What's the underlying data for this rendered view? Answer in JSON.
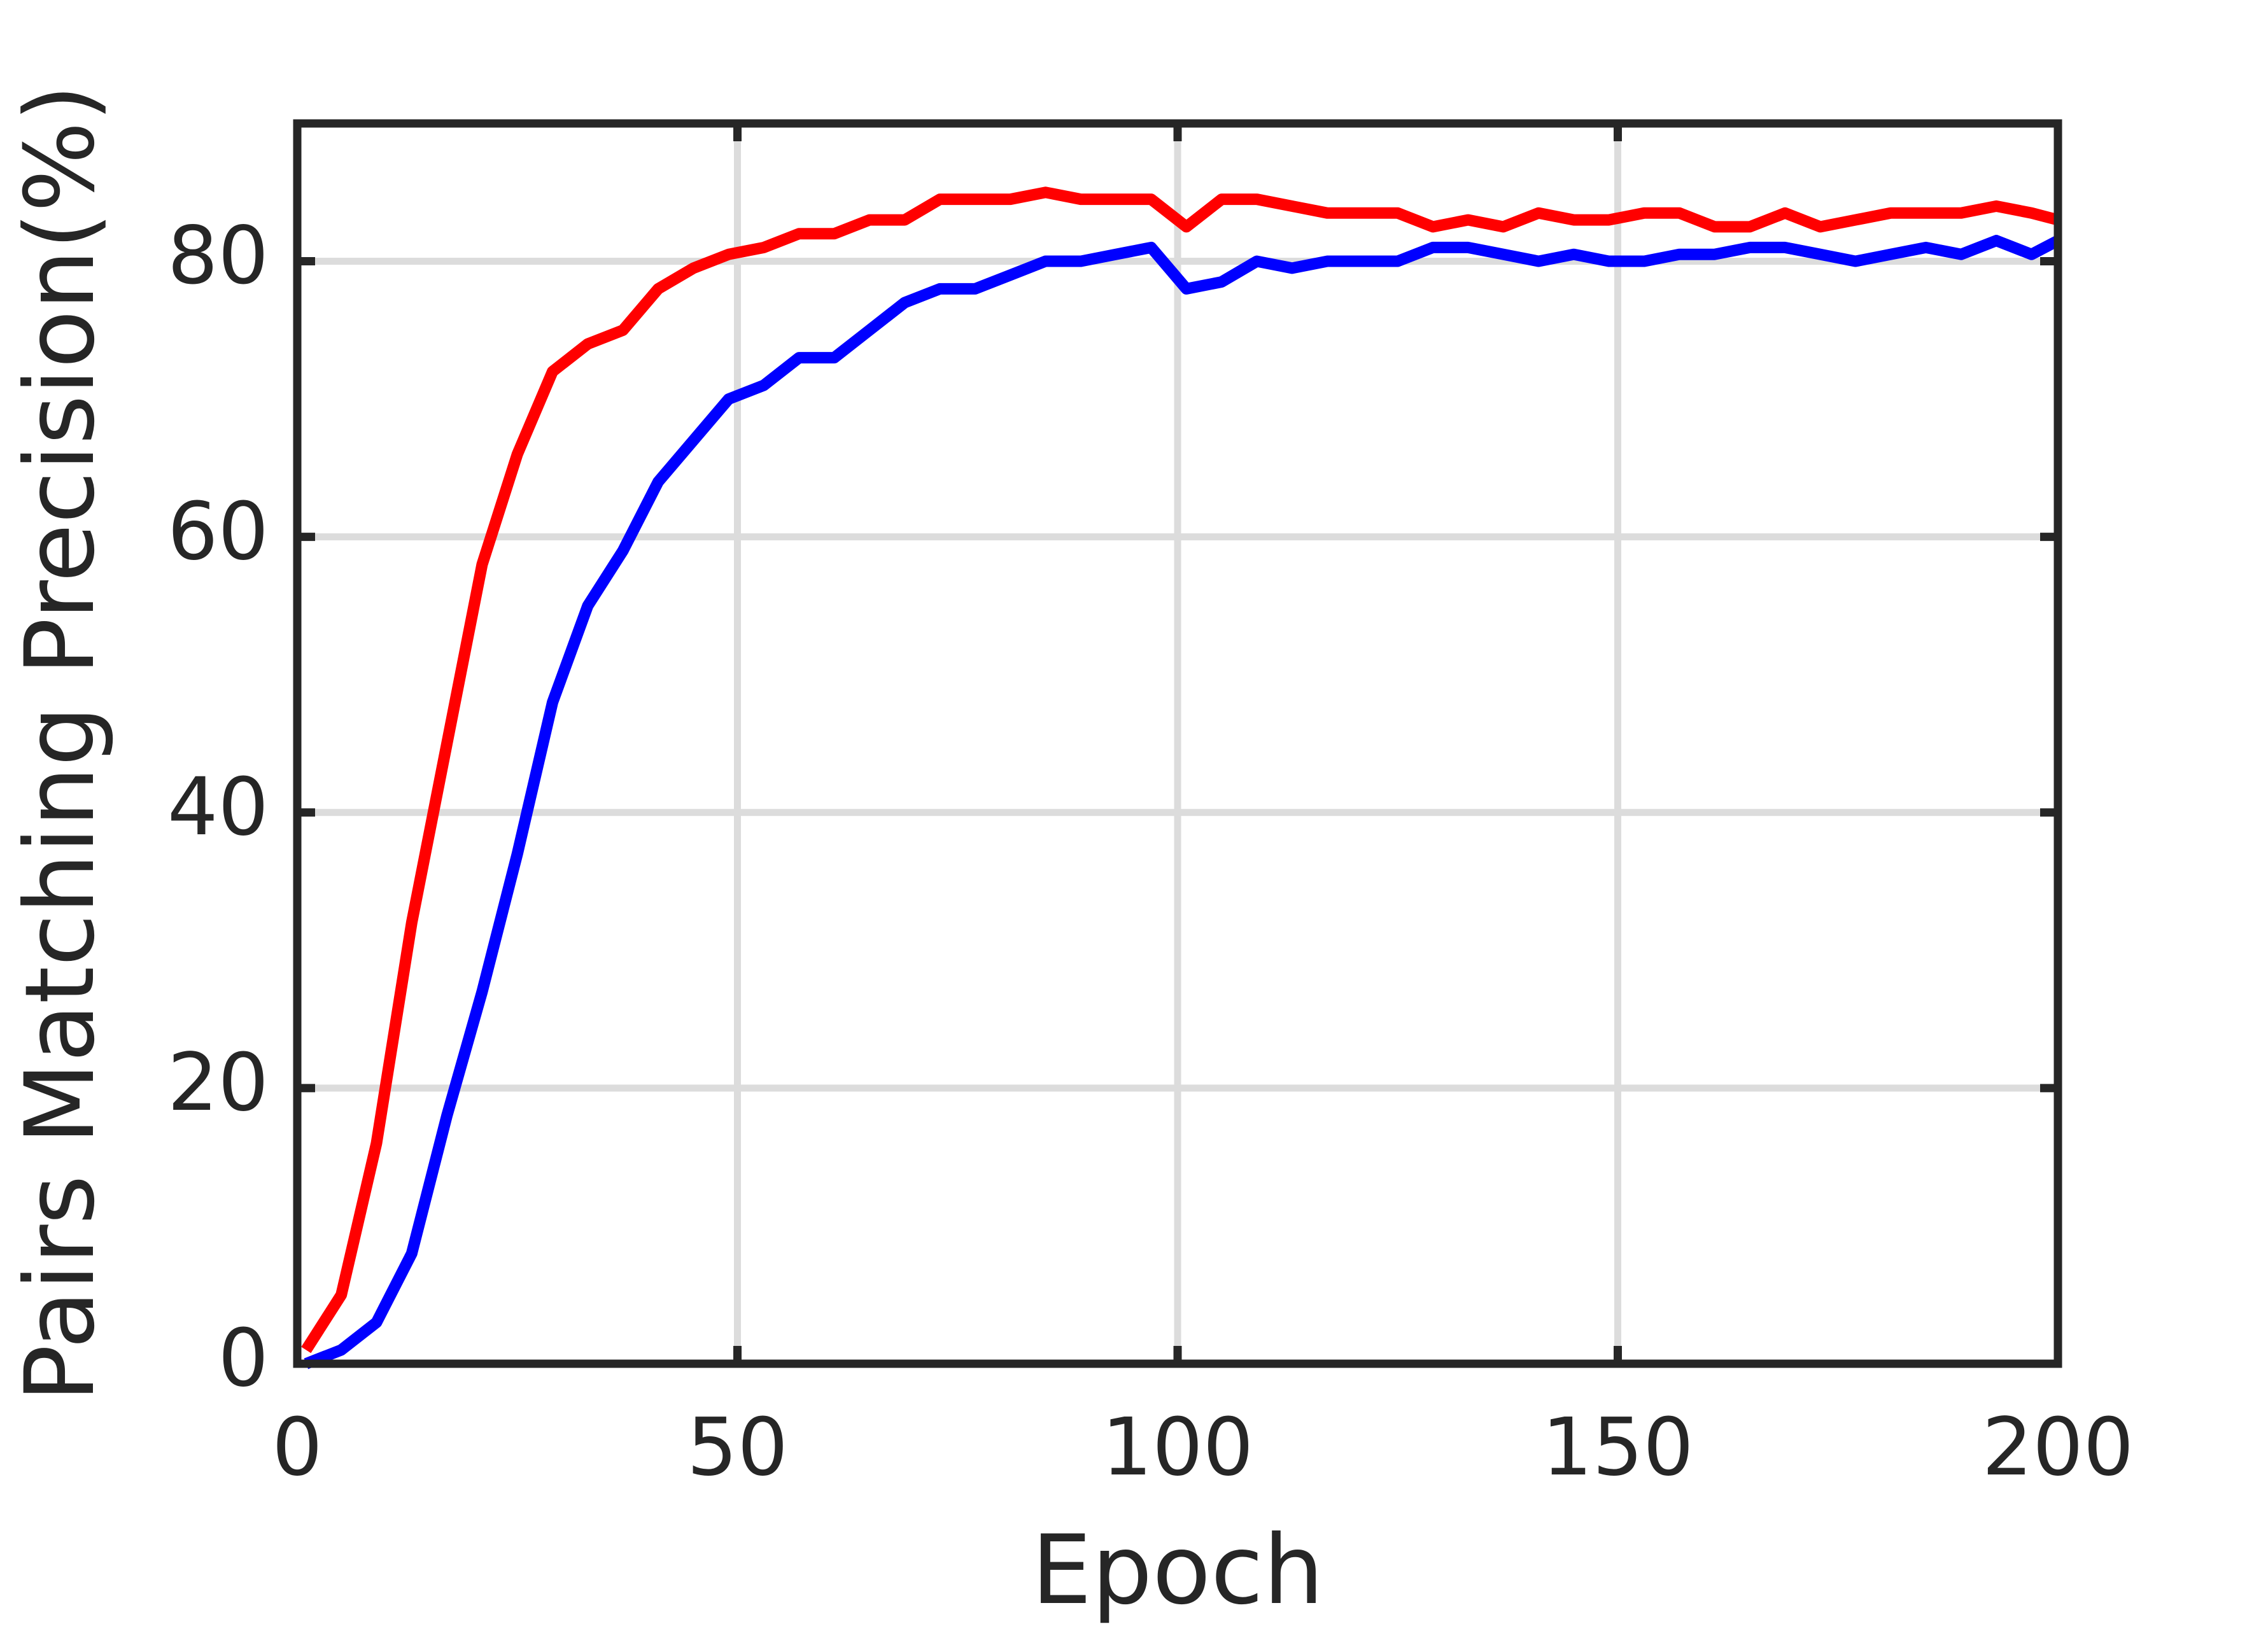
{
  "chart_data": {
    "type": "line",
    "x_label": "Epoch",
    "y_label": "Pairs Matching Precision(%)",
    "x": [
      1,
      5,
      9,
      13,
      17,
      21,
      25,
      29,
      33,
      37,
      41,
      45,
      49,
      53,
      57,
      61,
      65,
      69,
      73,
      77,
      81,
      85,
      89,
      93,
      97,
      101,
      105,
      109,
      113,
      117,
      121,
      125,
      129,
      133,
      137,
      141,
      145,
      149,
      153,
      157,
      161,
      165,
      169,
      173,
      177,
      181,
      185,
      189,
      193,
      197,
      200
    ],
    "series": [
      {
        "color": "#ff0000",
        "values": [
          1,
          5,
          16,
          32,
          45,
          58,
          66,
          72,
          74,
          75,
          78,
          79.5,
          80.5,
          81,
          82,
          82,
          83,
          83,
          84.5,
          84.5,
          84.5,
          85,
          84.5,
          84.5,
          84.5,
          82.5,
          84.5,
          84.5,
          84,
          83.5,
          83.5,
          83.5,
          82.5,
          83,
          82.5,
          83.5,
          83,
          83,
          83.5,
          83.5,
          82.5,
          82.5,
          83.5,
          82.5,
          83,
          83.5,
          83.5,
          83.5,
          84,
          83.5,
          83
        ]
      },
      {
        "color": "#0000ff",
        "values": [
          0,
          1,
          3,
          8,
          18,
          27,
          37,
          48,
          55,
          59,
          64,
          67,
          70,
          71,
          73,
          73,
          75,
          77,
          78,
          78,
          79,
          80,
          80,
          80.5,
          81,
          78,
          78.5,
          80,
          79.5,
          80,
          80,
          80,
          81,
          81,
          80.5,
          80,
          80.5,
          80,
          80,
          80.5,
          80.5,
          81,
          81,
          80.5,
          80,
          80.5,
          81,
          80.5,
          81.5,
          80.5,
          81.5
        ]
      }
    ],
    "xlim": [
      0,
      200
    ],
    "xticks": [
      0,
      50,
      100,
      150,
      200
    ],
    "ylim": [
      0,
      90
    ],
    "yticks": [
      0,
      20,
      40,
      60,
      80
    ],
    "grid": true
  }
}
